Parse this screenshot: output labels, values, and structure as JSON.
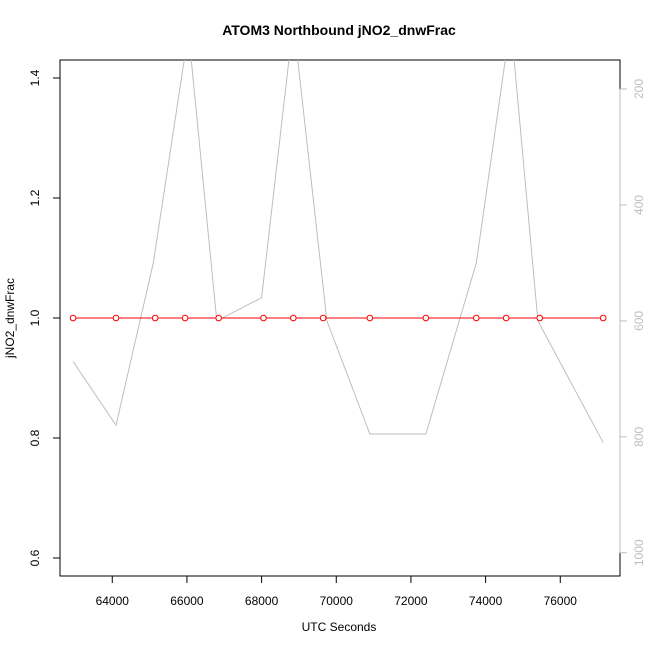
{
  "chart_data": {
    "type": "line",
    "title": "ATOM3 Northbound jNO2_dnwFrac",
    "xlabel": "UTC Seconds",
    "ylabel": "jNO2_dnwFrac",
    "xlim": [
      62600,
      77600
    ],
    "ylim": [
      0.57,
      1.43
    ],
    "y2lim": [
      1040,
      150
    ],
    "x_ticks": [
      64000,
      66000,
      68000,
      70000,
      72000,
      74000,
      76000
    ],
    "y_ticks": [
      "0.6",
      "0.8",
      "1.0",
      "1.2",
      "1.4"
    ],
    "y2_ticks": [
      200,
      400,
      600,
      800,
      1000
    ],
    "grid": false,
    "legend": "none",
    "series": [
      {
        "axis": "left",
        "color": "#ff0000",
        "style": "line-with-open-circles",
        "x": [
          62950,
          64100,
          65150,
          65950,
          66850,
          68050,
          68850,
          69650,
          70900,
          72400,
          73750,
          74550,
          75450,
          77150
        ],
        "y": [
          1.0,
          1.0,
          1.0,
          1.0,
          1.0,
          1.0,
          1.0,
          1.0,
          1.0,
          1.0,
          1.0,
          1.0,
          1.0,
          1.0
        ]
      },
      {
        "axis": "right",
        "color": "#bebebe",
        "style": "line",
        "x": [
          62950,
          64100,
          65100,
          65950,
          66100,
          66800,
          68000,
          68750,
          68950,
          69750,
          70900,
          72400,
          73750,
          74550,
          74750,
          75400,
          77150
        ],
        "y": [
          670,
          780,
          500,
          140,
          140,
          600,
          560,
          140,
          140,
          600,
          795,
          795,
          500,
          140,
          140,
          600,
          810
        ]
      }
    ]
  }
}
